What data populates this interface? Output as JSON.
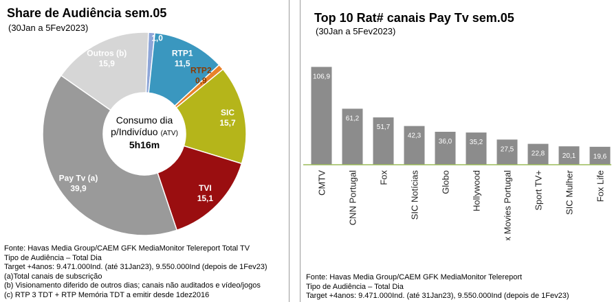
{
  "left": {
    "title": "Share de Audiência sem.05",
    "subtitle": "(30Jan a 5Fev2023)",
    "center": {
      "line1": "Consumo dia",
      "line2": "p/Indivíduo",
      "line2_small": "(ATV)",
      "line3": "5h16m"
    },
    "notes": [
      "Fonte: Havas Media Group/CAEM GFK MediaMonitor Telereport Total TV",
      "Tipo de Audiência – Total Dia",
      "Target +4anos: 9.471.000Ind. (até 31Jan23), 9.550.000Ind (depois de 1Fev23)",
      "(a)Total canais de subscrição",
      "(b) Visionamento diferido de outros dias; canais não auditados e vídeo/jogos",
      "(c) RTP 3 TDT + RTP Memória TDT a emitir desde 1dez2016"
    ]
  },
  "right": {
    "title": "Top 10 Rat# canais Pay Tv sem.05",
    "subtitle": "(30Jan a 5Fev2023)",
    "notes": [
      "Fonte: Havas Media Group/CAEM GFK MediaMonitor Telereport",
      "Tipo de Audiência – Total Dia",
      "Target +4anos: 9.471.000Ind. (até 31Jan23), 9.550.000Ind (depois de 1Fev23)"
    ]
  },
  "chart_data": [
    {
      "type": "pie",
      "title": "Share de Audiência sem.05",
      "subtitle": "(30Jan a 5Fev2023)",
      "slices": [
        {
          "label": "TDT (c)",
          "value": 1.0,
          "display": "1,0",
          "color": "#8ea6d8"
        },
        {
          "label": "RTP1",
          "value": 11.5,
          "display": "11,5",
          "color": "#3a97bf"
        },
        {
          "label": "RTP2",
          "value": 0.9,
          "display": "0,9",
          "color": "#e8822a"
        },
        {
          "label": "SIC",
          "value": 15.7,
          "display": "15,7",
          "color": "#b5b51a"
        },
        {
          "label": "TVI",
          "value": 15.1,
          "display": "15,1",
          "color": "#9a0e10"
        },
        {
          "label": "Pay Tv (a)",
          "value": 39.9,
          "display": "39,9",
          "color": "#9a9a9a"
        },
        {
          "label": "Outros (b)",
          "value": 15.9,
          "display": "15,9",
          "color": "#d6d6d6"
        }
      ]
    },
    {
      "type": "bar",
      "title": "Top 10 Rat# canais Pay Tv sem.05",
      "subtitle": "(30Jan a 5Fev2023)",
      "categories": [
        "CMTV",
        "CNN Portugal",
        "Fox",
        "SIC Notícias",
        "Globo",
        "Hollywood",
        "Fox Movies Portugal",
        "Sport TV+",
        "SIC Mulher",
        "Fox Life"
      ],
      "values": [
        106.9,
        61.2,
        51.7,
        42.3,
        36.0,
        35.2,
        27.5,
        22.8,
        20.1,
        19.6
      ],
      "labels": [
        "106,9",
        "61,2",
        "51,7",
        "42,3",
        "36,0",
        "35,2",
        "27,5",
        "22,8",
        "20,1",
        "19,6"
      ],
      "ylim": [
        0,
        120
      ],
      "bar_color": "#8c8c8c",
      "axis_color": "#9bbb59"
    }
  ]
}
